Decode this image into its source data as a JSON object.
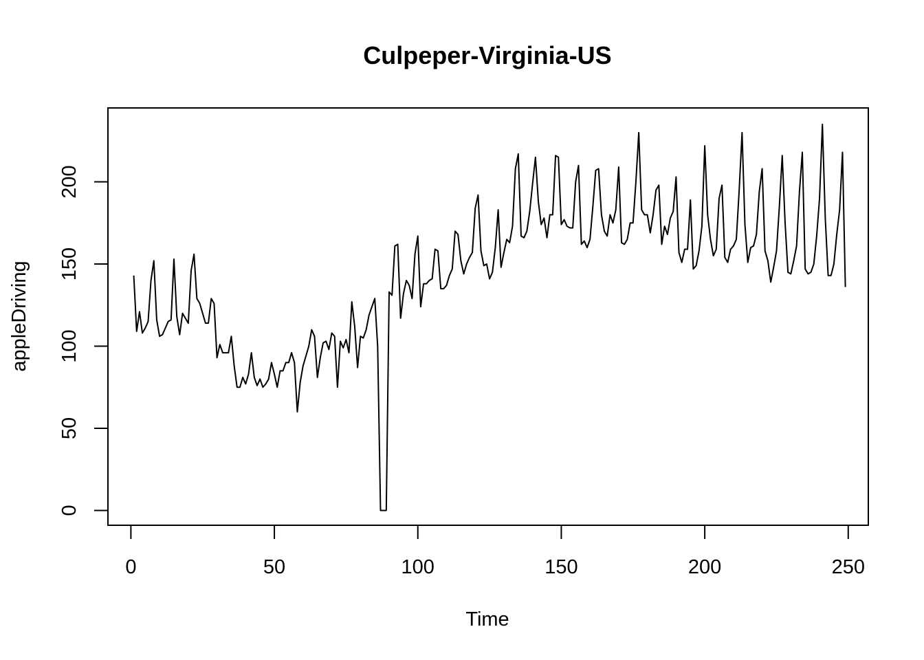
{
  "chart_data": {
    "type": "line",
    "title": "Culpeper-Virginia-US",
    "xlabel": "Time",
    "ylabel": "appleDriving",
    "xlim": [
      -8,
      257
    ],
    "ylim": [
      -9,
      245
    ],
    "x_ticks": [
      0,
      50,
      100,
      150,
      200,
      250
    ],
    "x_tick_labels": [
      "0",
      "50",
      "100",
      "150",
      "200",
      "250"
    ],
    "y_ticks": [
      0,
      50,
      100,
      150,
      200
    ],
    "y_tick_labels": [
      "0",
      "50",
      "100",
      "150",
      "200"
    ],
    "grid": false,
    "series": [
      {
        "x_start": 1,
        "color": "#000000",
        "values": [
          143,
          109,
          121,
          108,
          111,
          115,
          140,
          152,
          116,
          106,
          107,
          111,
          115,
          116,
          153,
          118,
          107,
          120,
          117,
          114,
          146,
          156,
          129,
          126,
          120,
          114,
          114,
          129,
          126,
          93,
          101,
          96,
          96,
          96,
          106,
          88,
          75,
          75,
          81,
          77,
          83,
          96,
          81,
          76,
          80,
          75,
          77,
          80,
          90,
          83,
          75,
          85,
          85,
          90,
          90,
          96,
          90,
          60,
          78,
          88,
          94,
          100,
          110,
          106,
          81,
          93,
          102,
          103,
          98,
          108,
          106,
          75,
          103,
          99,
          104,
          96,
          127,
          112,
          87,
          106,
          105,
          110,
          119,
          124,
          129,
          100,
          0,
          0,
          0,
          133,
          131,
          161,
          162,
          117,
          132,
          140,
          137,
          129,
          156,
          167,
          124,
          138,
          138,
          140,
          141,
          159,
          158,
          135,
          135,
          137,
          143,
          147,
          170,
          168,
          152,
          144,
          150,
          154,
          157,
          184,
          192,
          158,
          149,
          150,
          141,
          145,
          160,
          183,
          148,
          157,
          165,
          163,
          173,
          208,
          217,
          167,
          166,
          170,
          182,
          199,
          215,
          188,
          174,
          178,
          166,
          180,
          180,
          216,
          215,
          174,
          177,
          173,
          172,
          172,
          200,
          210,
          162,
          164,
          160,
          165,
          185,
          207,
          208,
          180,
          170,
          167,
          180,
          175,
          183,
          209,
          163,
          162,
          165,
          175,
          175,
          200,
          230,
          183,
          180,
          180,
          169,
          180,
          195,
          198,
          162,
          173,
          168,
          178,
          182,
          203,
          157,
          151,
          159,
          159,
          189,
          147,
          149,
          158,
          173,
          222,
          180,
          165,
          155,
          159,
          190,
          198,
          154,
          151,
          159,
          161,
          165,
          195,
          230,
          174,
          151,
          160,
          161,
          168,
          194,
          208,
          158,
          152,
          139,
          148,
          158,
          185,
          216,
          175,
          145,
          144,
          152,
          161,
          194,
          218,
          147,
          144,
          145,
          150,
          167,
          190,
          235,
          178,
          143,
          143,
          150,
          168,
          183,
          218,
          136
        ]
      }
    ]
  }
}
